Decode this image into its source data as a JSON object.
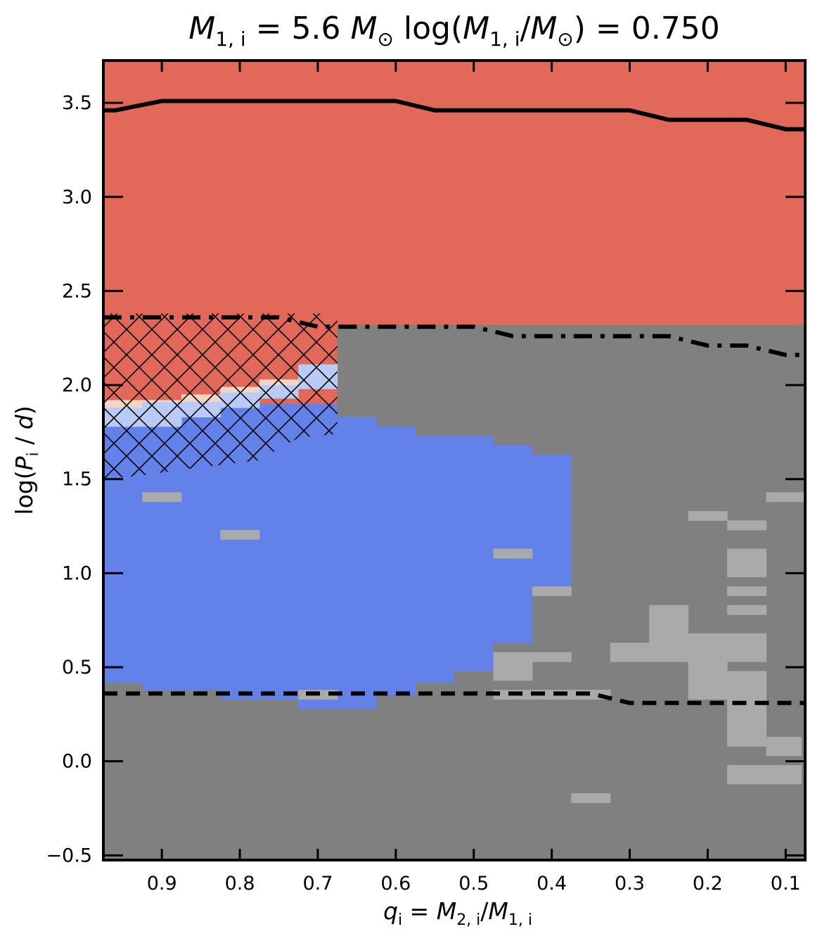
{
  "title": {
    "part1_sym": "M",
    "part1_sub": "1, i",
    "part1_eq": " = 5.6 ",
    "part1_unit": "M",
    "part1_sun": "⊙",
    "part2_pre": "log(",
    "part2_sym": "M",
    "part2_sub": "1, i",
    "part2_slash": "/",
    "part2_unit": "M",
    "part2_sun": "⊙",
    "part2_post": ") = 0.750"
  },
  "xlabel": {
    "sym": "q",
    "sub": "i",
    "eq": " = ",
    "num": "M",
    "num_sub": "2, i",
    "slash": "/",
    "den": "M",
    "den_sub": "1, i"
  },
  "ylabel": {
    "pre": "log(",
    "sym": "P",
    "sub": "i",
    "mid": " / ",
    "unit": "d",
    "post": ")"
  },
  "colors": {
    "red": "#e2695a",
    "blue": "#6281e9",
    "lightblue": "#b8cbf6",
    "peach": "#f4d4c2",
    "darkgrey": "#808080",
    "lightgrey": "#aaaaaa",
    "line": "#000000"
  },
  "chart_data": {
    "type": "heatmap",
    "x_axis": {
      "reversed": true,
      "xlim": [
        0.975,
        0.075
      ],
      "ticks": [
        0.9,
        0.8,
        0.7,
        0.6,
        0.5,
        0.4,
        0.3,
        0.2,
        0.1
      ],
      "tick_labels": [
        "0.9",
        "0.8",
        "0.7",
        "0.6",
        "0.5",
        "0.4",
        "0.3",
        "0.2",
        "0.1"
      ]
    },
    "y_axis": {
      "ylim": [
        -0.525,
        3.725
      ],
      "ticks": [
        -0.5,
        0.0,
        0.5,
        1.0,
        1.5,
        2.0,
        2.5,
        3.0,
        3.5
      ],
      "tick_labels": [
        "−0.5",
        "0.0",
        "0.5",
        "1.0",
        "1.5",
        "2.0",
        "2.5",
        "3.0",
        "3.5"
      ]
    },
    "background_fill": "darkgrey",
    "regions": [
      {
        "fill": "red",
        "x0": 0.975,
        "x1": 0.075,
        "y0": 3.725,
        "y1": 2.3
      },
      {
        "fill": "darkgrey",
        "x0": 0.675,
        "x1": 0.075,
        "y0": 2.32,
        "y1": -0.525
      },
      {
        "fill": "red",
        "x0": 0.975,
        "x1": 0.675,
        "y0": 2.38,
        "y1": 1.9
      },
      {
        "fill": "blue",
        "x0": 0.975,
        "x1": 0.375,
        "y0": 1.9,
        "y1": 0.42
      },
      {
        "fill": "darkgrey",
        "x0": 0.675,
        "x1": 0.625,
        "y0": 2.32,
        "y1": 1.83
      },
      {
        "fill": "darkgrey",
        "x0": 0.625,
        "x1": 0.575,
        "y0": 2.32,
        "y1": 1.78
      },
      {
        "fill": "darkgrey",
        "x0": 0.575,
        "x1": 0.475,
        "y0": 2.32,
        "y1": 1.73
      },
      {
        "fill": "darkgrey",
        "x0": 0.475,
        "x1": 0.425,
        "y0": 2.32,
        "y1": 1.68
      },
      {
        "fill": "darkgrey",
        "x0": 0.425,
        "x1": 0.375,
        "y0": 2.32,
        "y1": 1.63
      },
      {
        "fill": "blue",
        "x0": 0.675,
        "x1": 0.625,
        "y0": 1.83,
        "y1": 0.35
      },
      {
        "fill": "blue",
        "x0": 0.625,
        "x1": 0.575,
        "y0": 1.78,
        "y1": 0.35
      },
      {
        "fill": "blue",
        "x0": 0.575,
        "x1": 0.475,
        "y0": 1.73,
        "y1": 0.45
      },
      {
        "fill": "blue",
        "x0": 0.475,
        "x1": 0.425,
        "y0": 1.68,
        "y1": 0.63
      },
      {
        "fill": "blue",
        "x0": 0.425,
        "x1": 0.375,
        "y0": 1.63,
        "y1": 0.93
      },
      {
        "fill": "blue",
        "x0": 0.925,
        "x1": 0.675,
        "y0": 0.45,
        "y1": 0.38
      },
      {
        "fill": "blue",
        "x0": 0.825,
        "x1": 0.725,
        "y0": 0.38,
        "y1": 0.33
      },
      {
        "fill": "blue",
        "x0": 0.725,
        "x1": 0.625,
        "y0": 0.38,
        "y1": 0.28
      },
      {
        "fill": "red",
        "x0": 0.925,
        "x1": 0.875,
        "y0": 1.93,
        "y1": 1.92
      },
      {
        "fill": "red",
        "x0": 0.875,
        "x1": 0.825,
        "y0": 1.97,
        "y1": 1.95
      },
      {
        "fill": "red",
        "x0": 0.825,
        "x1": 0.775,
        "y0": 2.02,
        "y1": 1.99
      },
      {
        "fill": "red",
        "x0": 0.775,
        "x1": 0.725,
        "y0": 2.07,
        "y1": 2.03
      },
      {
        "fill": "red",
        "x0": 0.725,
        "x1": 0.675,
        "y0": 2.13,
        "y1": 2.11
      },
      {
        "fill": "peach",
        "x0": 0.975,
        "x1": 0.925,
        "y0": 1.92,
        "y1": 1.88
      },
      {
        "fill": "peach",
        "x0": 0.925,
        "x1": 0.875,
        "y0": 1.92,
        "y1": 1.91
      },
      {
        "fill": "peach",
        "x0": 0.875,
        "x1": 0.825,
        "y0": 1.95,
        "y1": 1.91
      },
      {
        "fill": "peach",
        "x0": 0.825,
        "x1": 0.775,
        "y0": 1.99,
        "y1": 1.96
      },
      {
        "fill": "peach",
        "x0": 0.775,
        "x1": 0.725,
        "y0": 2.03,
        "y1": 2.0
      },
      {
        "fill": "lightblue",
        "x0": 0.975,
        "x1": 0.925,
        "y0": 1.88,
        "y1": 1.78
      },
      {
        "fill": "lightblue",
        "x0": 0.925,
        "x1": 0.875,
        "y0": 1.91,
        "y1": 1.78
      },
      {
        "fill": "lightblue",
        "x0": 0.875,
        "x1": 0.825,
        "y0": 1.91,
        "y1": 1.83
      },
      {
        "fill": "lightblue",
        "x0": 0.825,
        "x1": 0.775,
        "y0": 1.96,
        "y1": 1.88
      },
      {
        "fill": "lightblue",
        "x0": 0.775,
        "x1": 0.725,
        "y0": 2.0,
        "y1": 1.93
      },
      {
        "fill": "lightblue",
        "x0": 0.725,
        "x1": 0.675,
        "y0": 2.11,
        "y1": 1.98
      },
      {
        "fill": "darkgrey",
        "x0": 0.375,
        "x1": 0.075,
        "y0": 2.32,
        "y1": -0.525
      },
      {
        "fill": "darkgrey",
        "x0": 0.425,
        "x1": 0.375,
        "y0": 0.93,
        "y1": -0.525
      },
      {
        "fill": "darkgrey",
        "x0": 0.475,
        "x1": 0.425,
        "y0": 0.63,
        "y1": -0.525
      },
      {
        "fill": "darkgrey",
        "x0": 0.525,
        "x1": 0.475,
        "y0": 0.48,
        "y1": -0.525
      },
      {
        "fill": "lightgrey",
        "x0": 0.925,
        "x1": 0.875,
        "y0": 1.43,
        "y1": 1.38
      },
      {
        "fill": "lightgrey",
        "x0": 0.825,
        "x1": 0.775,
        "y0": 1.23,
        "y1": 1.18
      },
      {
        "fill": "lightgrey",
        "x0": 0.475,
        "x1": 0.425,
        "y0": 1.13,
        "y1": 1.08
      },
      {
        "fill": "lightgrey",
        "x0": 0.425,
        "x1": 0.375,
        "y0": 0.93,
        "y1": 0.88
      },
      {
        "fill": "lightgrey",
        "x0": 0.475,
        "x1": 0.375,
        "y0": 0.58,
        "y1": 0.53
      },
      {
        "fill": "lightgrey",
        "x0": 0.475,
        "x1": 0.425,
        "y0": 0.53,
        "y1": 0.43
      },
      {
        "fill": "lightgrey",
        "x0": 0.725,
        "x1": 0.675,
        "y0": 0.38,
        "y1": 0.33
      },
      {
        "fill": "lightgrey",
        "x0": 0.475,
        "x1": 0.375,
        "y0": 0.38,
        "y1": 0.33
      },
      {
        "fill": "lightgrey",
        "x0": 0.375,
        "x1": 0.325,
        "y0": 0.38,
        "y1": 0.33
      },
      {
        "fill": "lightgrey",
        "x0": 0.375,
        "x1": 0.325,
        "y0": -0.17,
        "y1": -0.22
      },
      {
        "fill": "lightgrey",
        "x0": 0.325,
        "x1": 0.225,
        "y0": 0.63,
        "y1": 0.53
      },
      {
        "fill": "lightgrey",
        "x0": 0.275,
        "x1": 0.225,
        "y0": 0.83,
        "y1": 0.63
      },
      {
        "fill": "lightgrey",
        "x0": 0.225,
        "x1": 0.125,
        "y0": 0.68,
        "y1": 0.53
      },
      {
        "fill": "lightgrey",
        "x0": 0.225,
        "x1": 0.175,
        "y0": 0.53,
        "y1": 0.33
      },
      {
        "fill": "lightgrey",
        "x0": 0.175,
        "x1": 0.125,
        "y0": 0.48,
        "y1": 0.33
      },
      {
        "fill": "lightgrey",
        "x0": 0.225,
        "x1": 0.175,
        "y0": 1.33,
        "y1": 1.28
      },
      {
        "fill": "lightgrey",
        "x0": 0.175,
        "x1": 0.125,
        "y0": 1.28,
        "y1": 1.23
      },
      {
        "fill": "lightgrey",
        "x0": 0.175,
        "x1": 0.125,
        "y0": 1.13,
        "y1": 0.98
      },
      {
        "fill": "lightgrey",
        "x0": 0.175,
        "x1": 0.125,
        "y0": 0.93,
        "y1": 0.88
      },
      {
        "fill": "lightgrey",
        "x0": 0.175,
        "x1": 0.125,
        "y0": 0.83,
        "y1": 0.78
      },
      {
        "fill": "lightgrey",
        "x0": 0.125,
        "x1": 0.075,
        "y0": 1.43,
        "y1": 1.38
      },
      {
        "fill": "lightgrey",
        "x0": 0.175,
        "x1": 0.125,
        "y0": 0.33,
        "y1": 0.08
      },
      {
        "fill": "lightgrey",
        "x0": 0.125,
        "x1": 0.08,
        "y0": 0.13,
        "y1": 0.03
      },
      {
        "fill": "lightgrey",
        "x0": 0.175,
        "x1": 0.08,
        "y0": -0.02,
        "y1": -0.12
      }
    ],
    "hatched_region": [
      [
        0.975,
        2.38
      ],
      [
        0.675,
        2.38
      ],
      [
        0.675,
        1.74
      ],
      [
        0.725,
        1.72
      ],
      [
        0.775,
        1.6
      ],
      [
        0.875,
        1.55
      ],
      [
        0.925,
        1.52
      ],
      [
        0.975,
        1.5
      ]
    ],
    "lines": [
      {
        "style": "solid",
        "points": [
          [
            0.975,
            3.46
          ],
          [
            0.96,
            3.46
          ],
          [
            0.9,
            3.51
          ],
          [
            0.6,
            3.51
          ],
          [
            0.55,
            3.46
          ],
          [
            0.3,
            3.46
          ],
          [
            0.25,
            3.41
          ],
          [
            0.15,
            3.41
          ],
          [
            0.1,
            3.36
          ],
          [
            0.075,
            3.36
          ]
        ]
      },
      {
        "style": "dashdot",
        "points": [
          [
            0.975,
            2.36
          ],
          [
            0.75,
            2.36
          ],
          [
            0.7,
            2.31
          ],
          [
            0.5,
            2.31
          ],
          [
            0.45,
            2.26
          ],
          [
            0.25,
            2.26
          ],
          [
            0.2,
            2.21
          ],
          [
            0.15,
            2.21
          ],
          [
            0.1,
            2.16
          ],
          [
            0.075,
            2.16
          ]
        ]
      },
      {
        "style": "dashed",
        "points": [
          [
            0.975,
            0.36
          ],
          [
            0.35,
            0.36
          ],
          [
            0.3,
            0.31
          ],
          [
            0.075,
            0.31
          ]
        ]
      }
    ]
  }
}
